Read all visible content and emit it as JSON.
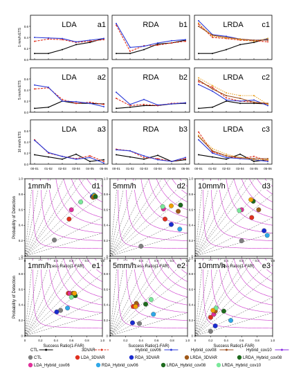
{
  "colors": {
    "CTL": "#000000",
    "3DVAR": "#e0301e",
    "Hybrid_cov06": "#2b39d8",
    "Hybrid_cov08": "#9a4a1a",
    "Hybrid_cov10": "#e8a020",
    "Hybrid_cov10_alt": "#8a2be2",
    "csi_contour": "#cc33cc",
    "bias_line": "#555555"
  },
  "line_charts": {
    "x_tick_labels": [
      "00-01",
      "01-02",
      "02-03",
      "03-04",
      "04-05",
      "05-06"
    ],
    "row_ylabels": [
      "1 mm/h ETS",
      "5 mm/h ETS",
      "10 mm/h ETS"
    ],
    "y_tick_labels": [
      "0.0",
      "0.2",
      "0.4",
      "0.6"
    ],
    "ylim": [
      0,
      0.8
    ],
    "panels": [
      {
        "title": "LDA",
        "tag": "a1",
        "series": [
          {
            "key": "CTL",
            "values": [
              0.11,
              0.11,
              0.18,
              0.27,
              0.31,
              0.38
            ]
          },
          {
            "key": "3DVAR",
            "values": [
              0.33,
              0.37,
              0.36,
              0.31,
              0.33,
              0.36
            ]
          },
          {
            "key": "Hybrid_cov06",
            "values": [
              0.4,
              0.39,
              0.38,
              0.32,
              0.35,
              0.38
            ]
          }
        ]
      },
      {
        "title": "RDA",
        "tag": "b1",
        "series": [
          {
            "key": "CTL",
            "values": [
              0.11,
              0.11,
              0.18,
              0.28,
              0.3,
              0.35
            ]
          },
          {
            "key": "3DVAR",
            "values": [
              0.62,
              0.15,
              0.25,
              0.26,
              0.3,
              0.33
            ]
          },
          {
            "key": "Hybrid_cov06",
            "values": [
              0.65,
              0.22,
              0.24,
              0.3,
              0.34,
              0.36
            ]
          }
        ]
      },
      {
        "title": "LRDA",
        "tag": "c1",
        "series": [
          {
            "key": "CTL",
            "values": [
              0.11,
              0.11,
              0.18,
              0.27,
              0.31,
              0.38
            ]
          },
          {
            "key": "3DVAR",
            "values": [
              0.64,
              0.4,
              0.38,
              0.35,
              0.34,
              0.32
            ]
          },
          {
            "key": "Hybrid_cov06",
            "values": [
              0.7,
              0.45,
              0.42,
              0.37,
              0.35,
              0.36
            ]
          },
          {
            "key": "Hybrid_cov08",
            "values": [
              0.6,
              0.44,
              0.4,
              0.37,
              0.35,
              0.35
            ]
          },
          {
            "key": "Hybrid_cov10",
            "values": [
              0.66,
              0.42,
              0.39,
              0.36,
              0.33,
              0.38
            ]
          }
        ]
      },
      {
        "title": "LDA",
        "tag": "a2",
        "series": [
          {
            "key": "CTL",
            "values": [
              0.07,
              0.09,
              0.2,
              0.16,
              0.16,
              0.15
            ]
          },
          {
            "key": "3DVAR",
            "values": [
              0.42,
              0.44,
              0.23,
              0.16,
              0.18,
              0.14
            ]
          },
          {
            "key": "Hybrid_cov06",
            "values": [
              0.49,
              0.45,
              0.2,
              0.19,
              0.16,
              0.1
            ]
          }
        ]
      },
      {
        "title": "RDA",
        "tag": "b2",
        "series": [
          {
            "key": "CTL",
            "values": [
              0.07,
              0.09,
              0.12,
              0.12,
              0.15,
              0.16
            ]
          },
          {
            "key": "3DVAR",
            "values": [
              0.25,
              0.12,
              0.14,
              0.12,
              0.16,
              0.17
            ]
          },
          {
            "key": "Hybrid_cov06",
            "values": [
              0.36,
              0.14,
              0.23,
              0.13,
              0.15,
              0.17
            ]
          }
        ]
      },
      {
        "title": "LRDA",
        "tag": "c2",
        "series": [
          {
            "key": "CTL",
            "values": [
              0.07,
              0.09,
              0.2,
              0.16,
              0.16,
              0.15
            ]
          },
          {
            "key": "3DVAR",
            "values": [
              0.55,
              0.45,
              0.26,
              0.2,
              0.18,
              0.15
            ]
          },
          {
            "key": "Hybrid_cov06",
            "values": [
              0.5,
              0.38,
              0.22,
              0.2,
              0.22,
              0.12
            ]
          },
          {
            "key": "Hybrid_cov08",
            "values": [
              0.58,
              0.42,
              0.3,
              0.25,
              0.18,
              0.16
            ]
          },
          {
            "key": "Hybrid_cov10",
            "values": [
              0.62,
              0.48,
              0.35,
              0.3,
              0.3,
              0.14
            ]
          }
        ]
      },
      {
        "title": "LDA",
        "tag": "a3",
        "series": [
          {
            "key": "CTL",
            "values": [
              0.17,
              0.13,
              0.09,
              0.18,
              0.05,
              0.08
            ]
          },
          {
            "key": "3DVAR",
            "values": [
              0.44,
              0.2,
              0.14,
              0.1,
              0.15,
              0.05
            ]
          },
          {
            "key": "Hybrid_cov06",
            "values": [
              0.43,
              0.21,
              0.14,
              0.09,
              0.12,
              0.02
            ]
          }
        ]
      },
      {
        "title": "RDA",
        "tag": "b3",
        "series": [
          {
            "key": "CTL",
            "values": [
              0.17,
              0.13,
              0.09,
              0.16,
              0.05,
              0.08
            ]
          },
          {
            "key": "3DVAR",
            "values": [
              0.27,
              0.24,
              0.12,
              0.1,
              0.05,
              0.1
            ]
          },
          {
            "key": "Hybrid_cov06",
            "values": [
              0.26,
              0.24,
              0.15,
              0.08,
              0.05,
              0.12
            ]
          }
        ]
      },
      {
        "title": "LRDA",
        "tag": "c3",
        "series": [
          {
            "key": "CTL",
            "values": [
              0.17,
              0.13,
              0.09,
              0.18,
              0.05,
              0.08
            ]
          },
          {
            "key": "3DVAR",
            "values": [
              0.58,
              0.22,
              0.15,
              0.1,
              0.14,
              0.06
            ]
          },
          {
            "key": "Hybrid_cov06",
            "values": [
              0.44,
              0.2,
              0.12,
              0.1,
              0.08,
              0.05
            ]
          },
          {
            "key": "Hybrid_cov08",
            "values": [
              0.5,
              0.24,
              0.15,
              0.12,
              0.1,
              0.1
            ]
          },
          {
            "key": "Hybrid_cov10",
            "values": [
              0.52,
              0.28,
              0.18,
              0.12,
              0.08,
              0.08
            ]
          }
        ]
      }
    ]
  },
  "perf_diagrams": {
    "xlabel": "Success Ratio(1-FAR)",
    "ylabel": "Probability of Detection",
    "tick_labels": [
      "0",
      "0.2",
      "0.4",
      "0.6",
      "0.8",
      "1.0"
    ],
    "bias_labels": [
      "0.3",
      "0.5",
      "0.8",
      "1",
      "1.3",
      "1.5",
      "2",
      "3",
      "5",
      "10"
    ],
    "csi_labels": [
      "0.1",
      "0.2",
      "0.3",
      "0.4",
      "0.5",
      "0.6",
      "0.7",
      "0.8",
      "0.9"
    ],
    "marker_colors": {
      "CTL": "#808080",
      "LDA_3DVAR": "#e0301e",
      "RDA_3DVAR": "#1a2bd0",
      "LRDA_3DVAR": "#a05a1a",
      "LDA_Hybrid_cov06": "#e0309a",
      "RDA_Hybrid_cov06": "#30a8e8",
      "LRDA_Hybrid_cov08": "#1e6a1e",
      "LRDA_Hybrid_cov10": "#7ae89a",
      "Hybrid_cov10_alt": "#f0a000"
    },
    "panels": [
      {
        "title": "1mm/h",
        "tag": "d1",
        "points": [
          {
            "key": "CTL",
            "x": 0.38,
            "y": 0.21
          },
          {
            "key": "LDA_3DVAR",
            "x": 0.57,
            "y": 0.48
          },
          {
            "key": "LDA_Hybrid_cov06",
            "x": 0.6,
            "y": 0.6
          },
          {
            "key": "LRDA_Hybrid_cov10",
            "x": 0.72,
            "y": 0.7
          },
          {
            "key": "RDA_3DVAR",
            "x": 0.87,
            "y": 0.77
          },
          {
            "key": "RDA_Hybrid_cov06",
            "x": 0.89,
            "y": 0.79
          },
          {
            "key": "LRDA_3DVAR",
            "x": 0.88,
            "y": 0.76
          },
          {
            "key": "Hybrid_cov10_alt",
            "x": 0.9,
            "y": 0.78
          },
          {
            "key": "LRDA_Hybrid_cov08",
            "x": 0.91,
            "y": 0.77
          }
        ]
      },
      {
        "title": "5mm/h",
        "tag": "d2",
        "points": [
          {
            "key": "CTL",
            "x": 0.4,
            "y": 0.13
          },
          {
            "key": "RDA_3DVAR",
            "x": 0.79,
            "y": 0.41
          },
          {
            "key": "RDA_Hybrid_cov06",
            "x": 0.9,
            "y": 0.35
          },
          {
            "key": "LDA_3DVAR",
            "x": 0.71,
            "y": 0.48
          },
          {
            "key": "LDA_Hybrid_cov06",
            "x": 0.69,
            "y": 0.61
          },
          {
            "key": "LRDA_Hybrid_cov10",
            "x": 0.68,
            "y": 0.64
          },
          {
            "key": "LRDA_3DVAR",
            "x": 0.88,
            "y": 0.58
          },
          {
            "key": "LRDA_Hybrid_cov08",
            "x": 0.91,
            "y": 0.66
          },
          {
            "key": "Hybrid_cov10_alt",
            "x": 0.79,
            "y": 0.65
          }
        ]
      },
      {
        "title": "10mm/h",
        "tag": "d3",
        "points": [
          {
            "key": "CTL",
            "x": 0.6,
            "y": 0.2
          },
          {
            "key": "RDA_3DVAR",
            "x": 0.89,
            "y": 0.33
          },
          {
            "key": "RDA_Hybrid_cov06",
            "x": 0.93,
            "y": 0.27
          },
          {
            "key": "LDA_3DVAR",
            "x": 0.73,
            "y": 0.5
          },
          {
            "key": "LDA_Hybrid_cov06",
            "x": 0.6,
            "y": 0.6
          },
          {
            "key": "LRDA_Hybrid_cov10",
            "x": 0.57,
            "y": 0.59
          },
          {
            "key": "LRDA_3DVAR",
            "x": 0.82,
            "y": 0.6
          },
          {
            "key": "LRDA_Hybrid_cov08",
            "x": 0.75,
            "y": 0.71
          },
          {
            "key": "Hybrid_cov10_alt",
            "x": 0.72,
            "y": 0.73
          }
        ]
      },
      {
        "title": "1mm/h",
        "tag": "e1",
        "points": [
          {
            "key": "CTL",
            "x": 0.46,
            "y": 0.33
          },
          {
            "key": "RDA_3DVAR",
            "x": 0.41,
            "y": 0.31
          },
          {
            "key": "RDA_Hybrid_cov06",
            "x": 0.55,
            "y": 0.36
          },
          {
            "key": "LDA_3DVAR",
            "x": 0.56,
            "y": 0.55
          },
          {
            "key": "LDA_Hybrid_cov06",
            "x": 0.58,
            "y": 0.55
          },
          {
            "key": "LRDA_3DVAR",
            "x": 0.62,
            "y": 0.55
          },
          {
            "key": "LRDA_Hybrid_cov08",
            "x": 0.65,
            "y": 0.52
          },
          {
            "key": "LRDA_Hybrid_cov10",
            "x": 0.6,
            "y": 0.5
          },
          {
            "key": "Hybrid_cov10_alt",
            "x": 0.64,
            "y": 0.55
          }
        ]
      },
      {
        "title": "5mm/h",
        "tag": "e2",
        "points": [
          {
            "key": "CTL",
            "x": 0.38,
            "y": 0.16
          },
          {
            "key": "RDA_3DVAR",
            "x": 0.29,
            "y": 0.17
          },
          {
            "key": "RDA_Hybrid_cov06",
            "x": 0.56,
            "y": 0.28
          },
          {
            "key": "LDA_3DVAR",
            "x": 0.3,
            "y": 0.38
          },
          {
            "key": "LDA_Hybrid_cov06",
            "x": 0.35,
            "y": 0.4
          },
          {
            "key": "LRDA_3DVAR",
            "x": 0.34,
            "y": 0.42
          },
          {
            "key": "LRDA_Hybrid_cov08",
            "x": 0.46,
            "y": 0.41
          },
          {
            "key": "LRDA_Hybrid_cov10",
            "x": 0.53,
            "y": 0.47
          },
          {
            "key": "Hybrid_cov10_alt",
            "x": 0.33,
            "y": 0.38
          }
        ]
      },
      {
        "title": "10mm/h",
        "tag": "e3",
        "points": [
          {
            "key": "CTL",
            "x": 0.2,
            "y": 0.06
          },
          {
            "key": "RDA_3DVAR",
            "x": 0.26,
            "y": 0.13
          },
          {
            "key": "RDA_Hybrid_cov06",
            "x": 0.46,
            "y": 0.2
          },
          {
            "key": "LDA_3DVAR",
            "x": 0.2,
            "y": 0.24
          },
          {
            "key": "LDA_Hybrid_cov06",
            "x": 0.24,
            "y": 0.28
          },
          {
            "key": "LRDA_3DVAR",
            "x": 0.26,
            "y": 0.32
          },
          {
            "key": "LRDA_Hybrid_cov08",
            "x": 0.37,
            "y": 0.32
          },
          {
            "key": "LRDA_Hybrid_cov10",
            "x": 0.27,
            "y": 0.36
          },
          {
            "key": "Hybrid_cov10_alt",
            "x": 0.23,
            "y": 0.33
          }
        ]
      }
    ]
  },
  "legend": {
    "lines": [
      {
        "label": "CTL",
        "key": "CTL"
      },
      {
        "label": "3DVAR",
        "key": "3DVAR"
      },
      {
        "label": "Hybrid_cov06",
        "key": "Hybrid_cov06"
      },
      {
        "label": "Hybrid_cov08",
        "key": "Hybrid_cov08"
      },
      {
        "label": "Hybrid_cov10",
        "key": "Hybrid_cov10_alt"
      }
    ],
    "markers_row1": [
      {
        "label": "CTL",
        "key": "CTL"
      },
      {
        "label": "LDA_3DVAR",
        "key": "LDA_3DVAR"
      },
      {
        "label": "RDA_3DVAR",
        "key": "RDA_3DVAR"
      },
      {
        "label": "LRDA_3DVAR",
        "key": "LRDA_3DVAR"
      },
      {
        "label": "LRDA_Hybrid_cov08",
        "key": "LRDA_Hybrid_cov08"
      }
    ],
    "markers_row2": [
      {
        "label": "LDA_Hybrid_cov06",
        "key": "LDA_Hybrid_cov06"
      },
      {
        "label": "RDA_Hybrid_cov06",
        "key": "RDA_Hybrid_cov06"
      },
      {
        "label": "LRDA_Hybrid_cov08",
        "key": "LRDA_Hybrid_cov08"
      },
      {
        "label": "LRDA_Hybrid_cov10",
        "key": "LRDA_Hybrid_cov10"
      }
    ]
  },
  "chart_data": [
    {
      "type": "line",
      "note": "ETS time series panels a1-c3",
      "ref": "line_charts"
    },
    {
      "type": "scatter",
      "note": "performance diagrams d1-e3",
      "ref": "perf_diagrams"
    }
  ]
}
